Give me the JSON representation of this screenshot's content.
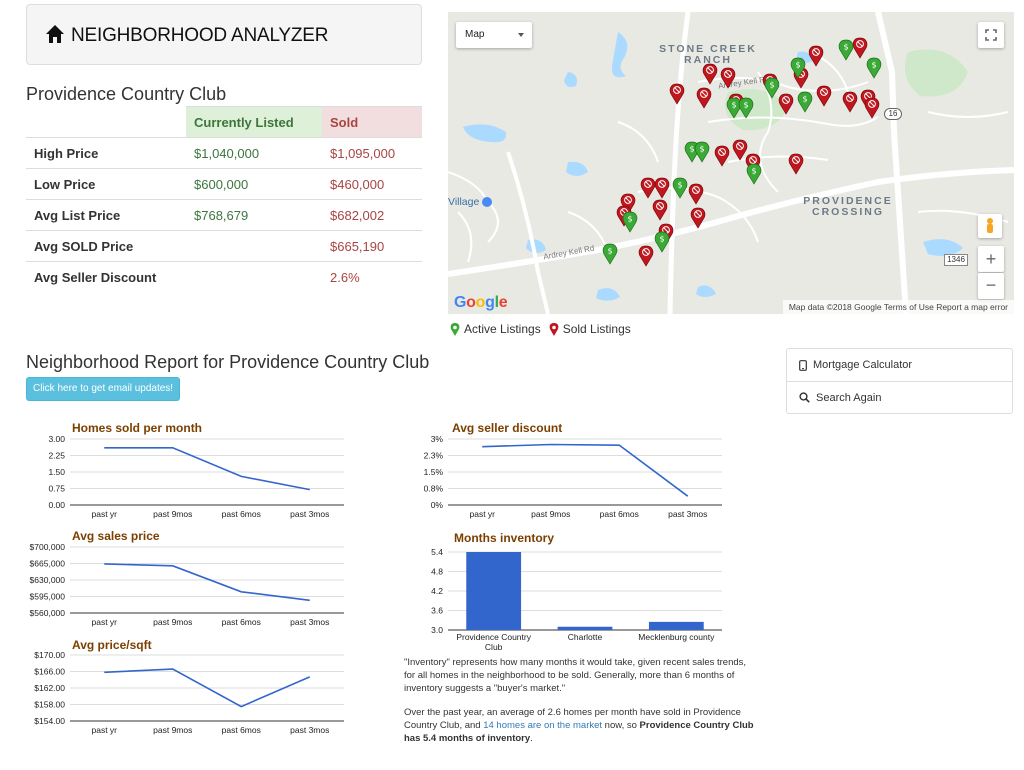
{
  "header": {
    "title": "NEIGHBORHOOD ANALYZER",
    "icon": "home-icon"
  },
  "neighborhood": "Providence Country Club",
  "stats_table": {
    "columns": [
      "",
      "Currently Listed",
      "Sold"
    ],
    "rows": [
      {
        "label": "High Price",
        "listed": "$1,040,000",
        "sold": "$1,095,000"
      },
      {
        "label": "Low Price",
        "listed": "$600,000",
        "sold": "$460,000"
      },
      {
        "label": "Avg List Price",
        "listed": "$768,679",
        "sold": "$682,002"
      },
      {
        "label": "Avg SOLD Price",
        "listed": "",
        "sold": "$665,190"
      },
      {
        "label": "Avg Seller Discount",
        "listed": "",
        "sold": "2.6%"
      }
    ]
  },
  "map": {
    "type_select": "Map",
    "labels": [
      "STONE CREEK RANCH",
      "PROVIDENCE CROSSING",
      "Village",
      "Ardrey Kell Rd",
      "Ardrey Kell Rd"
    ],
    "road_badge": "16",
    "road_badge2": "1346",
    "logo": "Google",
    "footer": "Map data ©2018 Google   Terms of Use   Report a map error",
    "colors": {
      "active": "#3aa935",
      "sold": "#c0161d"
    }
  },
  "legend": {
    "active": "Active Listings",
    "sold": "Sold Listings"
  },
  "report": {
    "title": "Neighborhood Report for Providence Country Club",
    "email_button": "Click here to get email updates!"
  },
  "sidebar": {
    "items": [
      {
        "label": "Mortgage Calculator",
        "icon": "phone-icon"
      },
      {
        "label": "Search Again",
        "icon": "search-icon"
      }
    ]
  },
  "chart_data": [
    {
      "type": "line",
      "title": "Homes sold per month",
      "categories": [
        "past yr",
        "past 9mos",
        "past 6mos",
        "past 3mos"
      ],
      "values": [
        2.6,
        2.6,
        1.3,
        0.7
      ],
      "yticks": [
        "3.00",
        "2.25",
        "1.50",
        "0.75",
        "0.00"
      ],
      "ylim": [
        0,
        3
      ],
      "color": "#3366cc"
    },
    {
      "type": "line",
      "title": "Avg sales price",
      "categories": [
        "past yr",
        "past 9mos",
        "past 6mos",
        "past 3mos"
      ],
      "values": [
        664000,
        660000,
        605000,
        587000
      ],
      "yticks": [
        "$700,000",
        "$665,000",
        "$630,000",
        "$595,000",
        "$560,000"
      ],
      "ylim": [
        560000,
        700000
      ],
      "color": "#3366cc"
    },
    {
      "type": "line",
      "title": "Avg price/sqft",
      "categories": [
        "past yr",
        "past 9mos",
        "past 6mos",
        "past 3mos"
      ],
      "values": [
        165.8,
        166.6,
        157.5,
        164.7
      ],
      "yticks": [
        "$170.00",
        "$166.00",
        "$162.00",
        "$158.00",
        "$154.00"
      ],
      "ylim": [
        154,
        170
      ],
      "color": "#3366cc"
    },
    {
      "type": "line",
      "title": "Avg seller discount",
      "categories": [
        "past yr",
        "past 9mos",
        "past 6mos",
        "past 3mos"
      ],
      "values": [
        2.65,
        2.75,
        2.72,
        0.4
      ],
      "yticks": [
        "3%",
        "2.3%",
        "1.5%",
        "0.8%",
        "0%"
      ],
      "ylim": [
        0,
        3
      ],
      "color": "#3366cc"
    },
    {
      "type": "bar",
      "title": "Months inventory",
      "categories": [
        "Providence Country Club",
        "Charlotte",
        "Mecklenburg county"
      ],
      "values": [
        5.4,
        3.1,
        3.25
      ],
      "yticks": [
        "5.4",
        "4.8",
        "4.2",
        "3.6",
        "3.0"
      ],
      "ylim": [
        3.0,
        5.4
      ],
      "color": "#3366cc"
    }
  ],
  "inventory_text": {
    "p1": "\"Inventory\" represents how many months it would take, given recent sales trends, for all homes in the neighborhood to be sold. Generally, more than 6 months of inventory suggests a \"buyer's market.\"",
    "p2_a": "Over the past year, an average of 2.6 homes per month have sold in Providence Country Club, and ",
    "p2_link": "14 homes are on the market",
    "p2_b": " now, so ",
    "p2_bold": "Providence Country Club has 5.4 months of inventory",
    "p2_end": "."
  }
}
